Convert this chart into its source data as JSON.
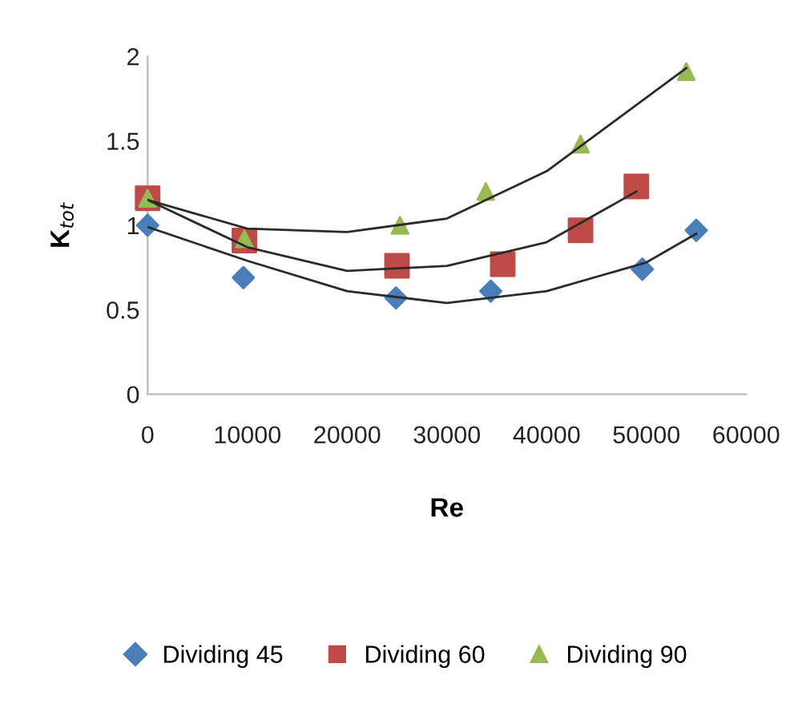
{
  "chart_data": {
    "type": "scatter",
    "xlabel": "Re",
    "ylabel": "K$_{tot}$",
    "xlim": [
      0,
      60000
    ],
    "xticks": [
      0,
      10000,
      20000,
      30000,
      40000,
      50000,
      60000
    ],
    "ylim": [
      0,
      2
    ],
    "yticks": [
      0,
      0.5,
      1,
      1.5,
      2
    ],
    "grid": false,
    "legend": "bottom",
    "series": [
      {
        "name": "Dividing 45",
        "color": "#4a7ebb",
        "marker": "diamond",
        "x": [
          0,
          9600,
          24900,
          34400,
          49600,
          55000
        ],
        "values": [
          1.0,
          0.69,
          0.57,
          0.61,
          0.74,
          0.97
        ]
      },
      {
        "name": "Dividing 60",
        "color": "#be4b48",
        "marker": "square",
        "x": [
          0,
          9700,
          25000,
          35600,
          43400,
          49000
        ],
        "values": [
          1.16,
          0.91,
          0.76,
          0.77,
          0.97,
          1.23
        ]
      },
      {
        "name": "Dividing 90",
        "color": "#98b954",
        "marker": "triangle",
        "x": [
          0,
          9700,
          25300,
          33900,
          43400,
          54000
        ],
        "values": [
          1.16,
          0.92,
          1.0,
          1.2,
          1.48,
          1.91
        ]
      },
      {
        "type": "line",
        "color": "#2b2b2b",
        "x": [
          0,
          10000,
          20000,
          30000,
          40000,
          50000,
          55000
        ],
        "values": [
          0.99,
          0.79,
          0.61,
          0.54,
          0.61,
          0.78,
          0.95
        ]
      },
      {
        "type": "line",
        "color": "#2b2b2b",
        "x": [
          0,
          10000,
          20000,
          30000,
          40000,
          49000
        ],
        "values": [
          1.15,
          0.87,
          0.73,
          0.76,
          0.9,
          1.2
        ]
      },
      {
        "type": "line",
        "color": "#2b2b2b",
        "x": [
          0,
          10000,
          20000,
          30000,
          40000,
          54000
        ],
        "values": [
          1.15,
          0.98,
          0.96,
          1.04,
          1.32,
          1.93
        ]
      }
    ]
  }
}
